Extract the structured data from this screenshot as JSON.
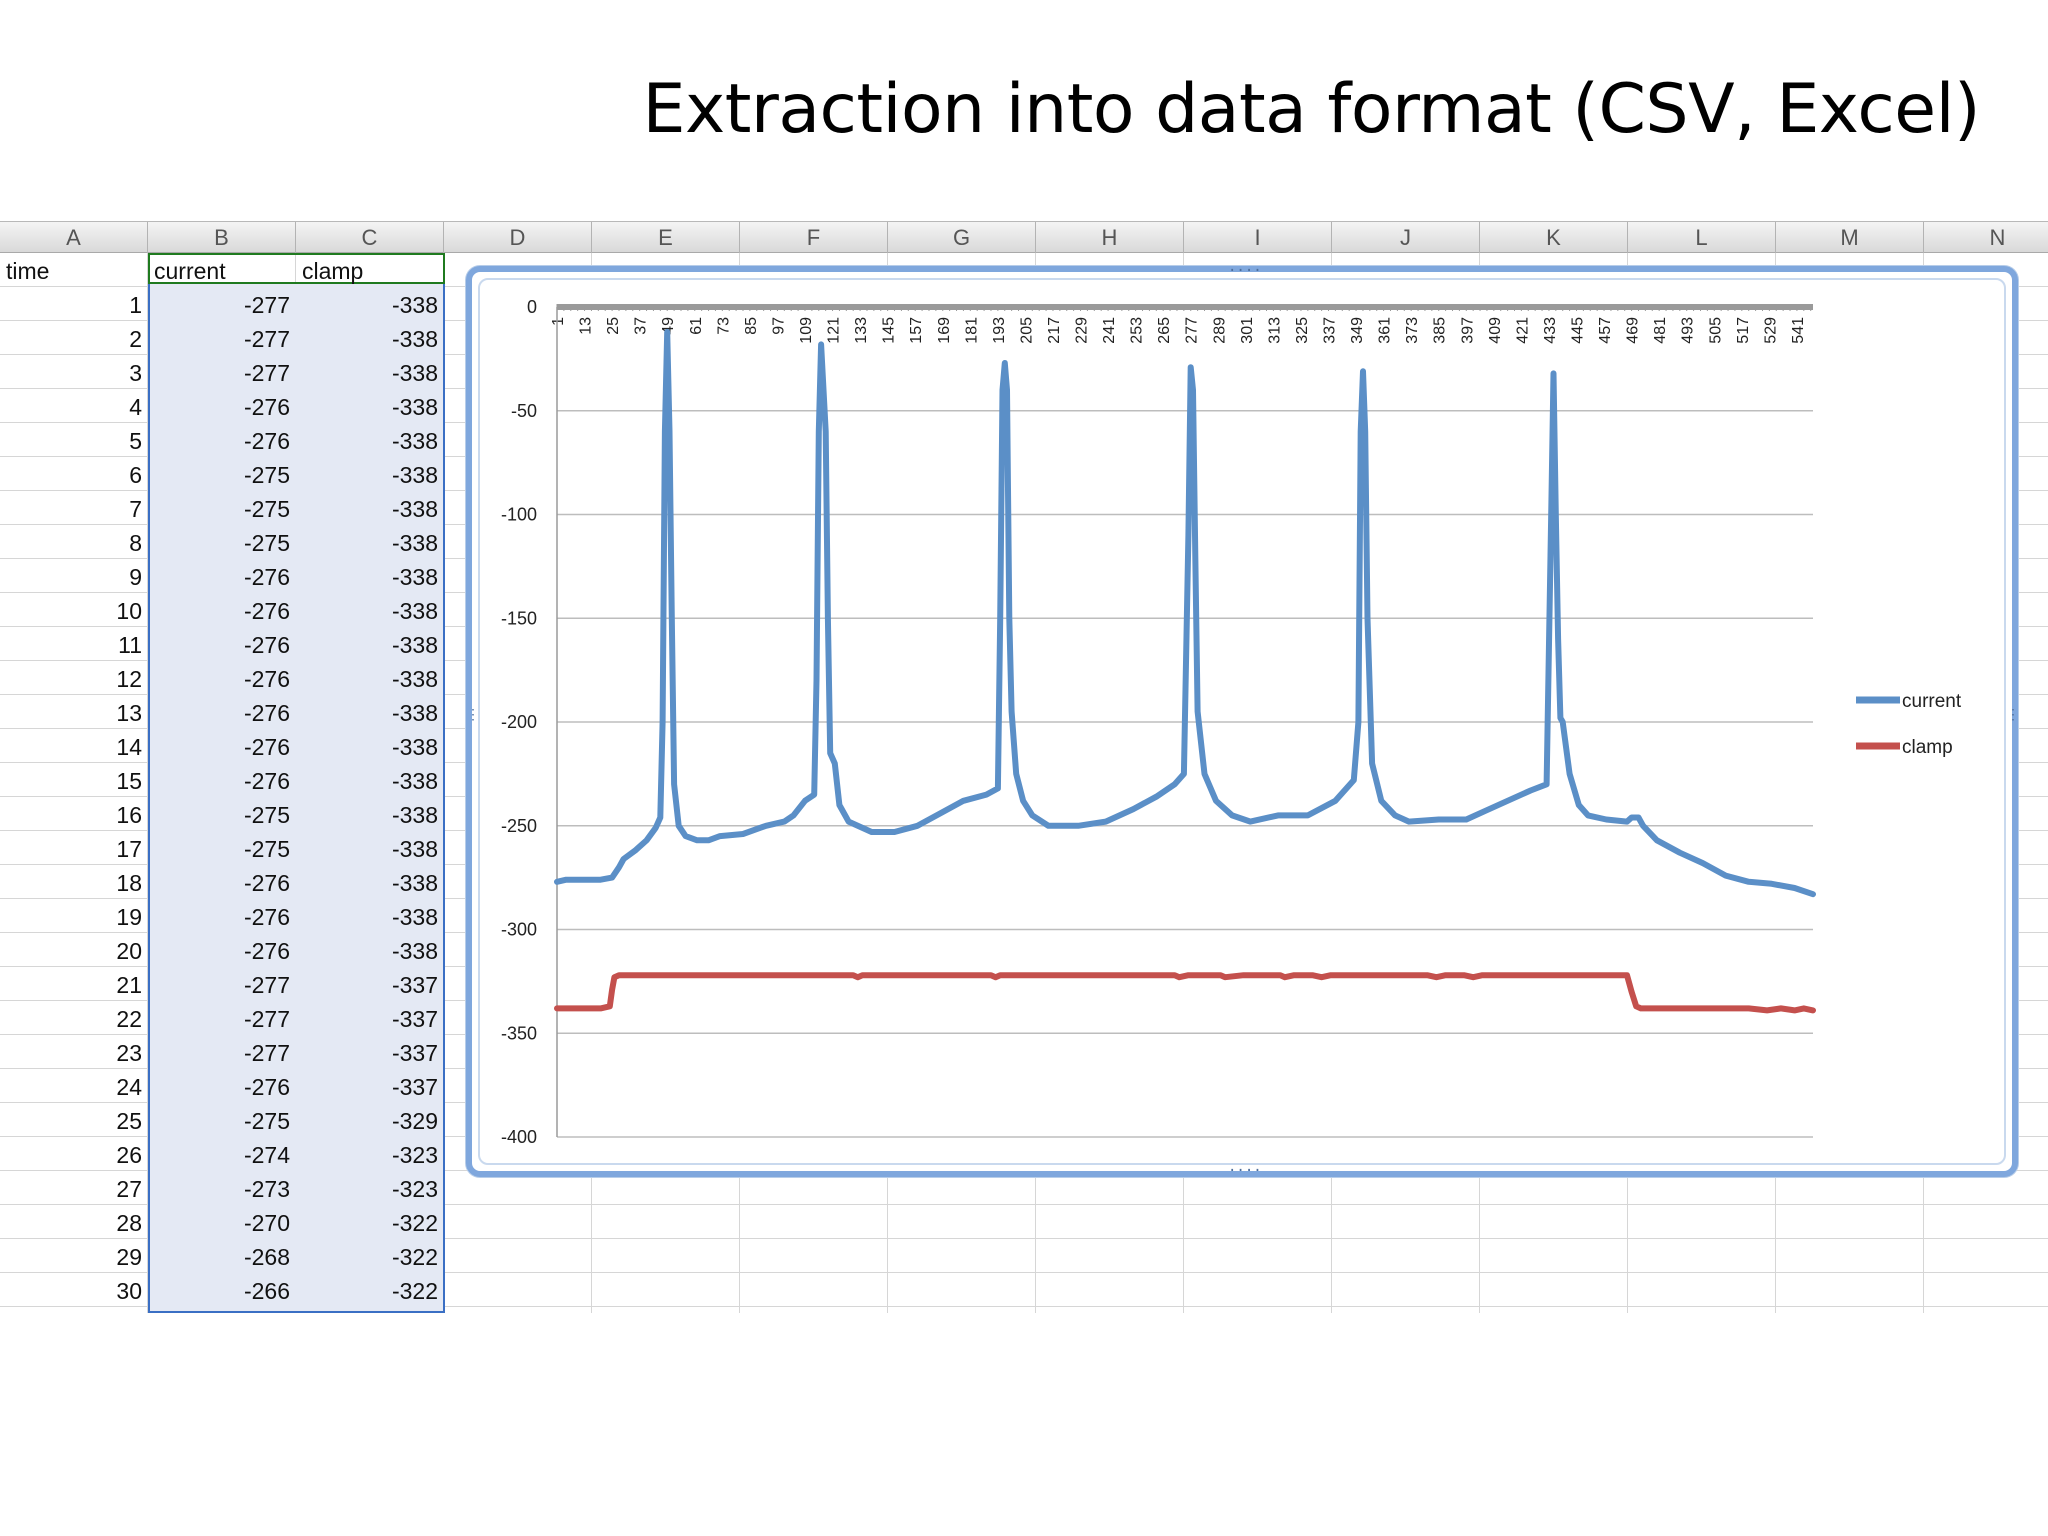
{
  "slide": {
    "title": "Extraction into data format (CSV, Excel)"
  },
  "spreadsheet": {
    "columns": [
      "A",
      "B",
      "C",
      "D",
      "E",
      "F",
      "G",
      "H",
      "I",
      "J",
      "K",
      "L",
      "M",
      "N"
    ],
    "headers": {
      "time": "time",
      "current": "current",
      "clamp": "clamp"
    },
    "rows": [
      {
        "time": "1",
        "current": "-277",
        "clamp": "-338"
      },
      {
        "time": "2",
        "current": "-277",
        "clamp": "-338"
      },
      {
        "time": "3",
        "current": "-277",
        "clamp": "-338"
      },
      {
        "time": "4",
        "current": "-276",
        "clamp": "-338"
      },
      {
        "time": "5",
        "current": "-276",
        "clamp": "-338"
      },
      {
        "time": "6",
        "current": "-275",
        "clamp": "-338"
      },
      {
        "time": "7",
        "current": "-275",
        "clamp": "-338"
      },
      {
        "time": "8",
        "current": "-275",
        "clamp": "-338"
      },
      {
        "time": "9",
        "current": "-276",
        "clamp": "-338"
      },
      {
        "time": "10",
        "current": "-276",
        "clamp": "-338"
      },
      {
        "time": "11",
        "current": "-276",
        "clamp": "-338"
      },
      {
        "time": "12",
        "current": "-276",
        "clamp": "-338"
      },
      {
        "time": "13",
        "current": "-276",
        "clamp": "-338"
      },
      {
        "time": "14",
        "current": "-276",
        "clamp": "-338"
      },
      {
        "time": "15",
        "current": "-276",
        "clamp": "-338"
      },
      {
        "time": "16",
        "current": "-275",
        "clamp": "-338"
      },
      {
        "time": "17",
        "current": "-275",
        "clamp": "-338"
      },
      {
        "time": "18",
        "current": "-276",
        "clamp": "-338"
      },
      {
        "time": "19",
        "current": "-276",
        "clamp": "-338"
      },
      {
        "time": "20",
        "current": "-276",
        "clamp": "-338"
      },
      {
        "time": "21",
        "current": "-277",
        "clamp": "-337"
      },
      {
        "time": "22",
        "current": "-277",
        "clamp": "-337"
      },
      {
        "time": "23",
        "current": "-277",
        "clamp": "-337"
      },
      {
        "time": "24",
        "current": "-276",
        "clamp": "-337"
      },
      {
        "time": "25",
        "current": "-275",
        "clamp": "-329"
      },
      {
        "time": "26",
        "current": "-274",
        "clamp": "-323"
      },
      {
        "time": "27",
        "current": "-273",
        "clamp": "-323"
      },
      {
        "time": "28",
        "current": "-270",
        "clamp": "-322"
      },
      {
        "time": "29",
        "current": "-268",
        "clamp": "-322"
      },
      {
        "time": "30",
        "current": "-266",
        "clamp": "-322"
      }
    ]
  },
  "chart_data": {
    "type": "line",
    "title": "",
    "xlabel": "",
    "ylabel": "",
    "ylim": [
      -400,
      0
    ],
    "yticks": [
      0,
      -50,
      -100,
      -150,
      -200,
      -250,
      -300,
      -350,
      -400
    ],
    "xlim": [
      1,
      548
    ],
    "xtick_labels": [
      "1",
      "13",
      "25",
      "37",
      "49",
      "61",
      "73",
      "85",
      "97",
      "109",
      "121",
      "133",
      "145",
      "157",
      "169",
      "181",
      "193",
      "205",
      "217",
      "229",
      "241",
      "253",
      "265",
      "277",
      "289",
      "301",
      "313",
      "325",
      "337",
      "349",
      "361",
      "373",
      "385",
      "397",
      "409",
      "421",
      "433",
      "445",
      "457",
      "469",
      "481",
      "493",
      "505",
      "517",
      "529",
      "541"
    ],
    "grid": true,
    "legend_position": "right",
    "colors": {
      "current": "#5b8fc7",
      "clamp": "#c4504d"
    },
    "series": [
      {
        "name": "current",
        "points": [
          [
            1,
            -277
          ],
          [
            5,
            -276
          ],
          [
            10,
            -276
          ],
          [
            15,
            -276
          ],
          [
            20,
            -276
          ],
          [
            25,
            -275
          ],
          [
            28,
            -270
          ],
          [
            30,
            -266
          ],
          [
            35,
            -262
          ],
          [
            40,
            -257
          ],
          [
            44,
            -251
          ],
          [
            46,
            -246
          ],
          [
            47,
            -200
          ],
          [
            48,
            -60
          ],
          [
            49,
            -12
          ],
          [
            50,
            -60
          ],
          [
            51,
            -150
          ],
          [
            52,
            -230
          ],
          [
            54,
            -250
          ],
          [
            57,
            -255
          ],
          [
            62,
            -257
          ],
          [
            67,
            -257
          ],
          [
            72,
            -255
          ],
          [
            82,
            -254
          ],
          [
            92,
            -250
          ],
          [
            100,
            -248
          ],
          [
            104,
            -245
          ],
          [
            109,
            -238
          ],
          [
            113,
            -235
          ],
          [
            114,
            -180
          ],
          [
            115,
            -60
          ],
          [
            116,
            -18
          ],
          [
            118,
            -60
          ],
          [
            119,
            -150
          ],
          [
            120,
            -215
          ],
          [
            122,
            -220
          ],
          [
            124,
            -240
          ],
          [
            128,
            -248
          ],
          [
            138,
            -253
          ],
          [
            148,
            -253
          ],
          [
            158,
            -250
          ],
          [
            168,
            -244
          ],
          [
            178,
            -238
          ],
          [
            188,
            -235
          ],
          [
            193,
            -232
          ],
          [
            194,
            -150
          ],
          [
            195,
            -40
          ],
          [
            196,
            -27
          ],
          [
            197,
            -40
          ],
          [
            198,
            -150
          ],
          [
            199,
            -195
          ],
          [
            201,
            -225
          ],
          [
            204,
            -238
          ],
          [
            208,
            -245
          ],
          [
            215,
            -250
          ],
          [
            228,
            -250
          ],
          [
            240,
            -248
          ],
          [
            252,
            -242
          ],
          [
            262,
            -236
          ],
          [
            270,
            -230
          ],
          [
            274,
            -225
          ],
          [
            276,
            -110
          ],
          [
            277,
            -29
          ],
          [
            278,
            -40
          ],
          [
            279,
            -120
          ],
          [
            280,
            -195
          ],
          [
            283,
            -225
          ],
          [
            288,
            -238
          ],
          [
            295,
            -245
          ],
          [
            303,
            -248
          ],
          [
            315,
            -245
          ],
          [
            328,
            -245
          ],
          [
            340,
            -238
          ],
          [
            348,
            -228
          ],
          [
            350,
            -200
          ],
          [
            351,
            -60
          ],
          [
            352,
            -31
          ],
          [
            353,
            -60
          ],
          [
            354,
            -150
          ],
          [
            356,
            -220
          ],
          [
            360,
            -238
          ],
          [
            366,
            -245
          ],
          [
            372,
            -248
          ],
          [
            385,
            -247
          ],
          [
            397,
            -247
          ],
          [
            405,
            -243
          ],
          [
            415,
            -238
          ],
          [
            425,
            -233
          ],
          [
            432,
            -230
          ],
          [
            434,
            -100
          ],
          [
            435,
            -32
          ],
          [
            436,
            -100
          ],
          [
            437,
            -160
          ],
          [
            438,
            -198
          ],
          [
            439,
            -200
          ],
          [
            442,
            -225
          ],
          [
            446,
            -240
          ],
          [
            450,
            -245
          ],
          [
            458,
            -247
          ],
          [
            467,
            -248
          ],
          [
            469,
            -246
          ],
          [
            472,
            -246
          ],
          [
            474,
            -250
          ],
          [
            480,
            -257
          ],
          [
            490,
            -263
          ],
          [
            500,
            -268
          ],
          [
            510,
            -274
          ],
          [
            520,
            -277
          ],
          [
            530,
            -278
          ],
          [
            540,
            -280
          ],
          [
            548,
            -283
          ]
        ]
      },
      {
        "name": "clamp",
        "points": [
          [
            1,
            -338
          ],
          [
            20,
            -338
          ],
          [
            24,
            -337
          ],
          [
            25,
            -329
          ],
          [
            26,
            -323
          ],
          [
            28,
            -322
          ],
          [
            50,
            -322
          ],
          [
            100,
            -322
          ],
          [
            130,
            -322
          ],
          [
            132,
            -323
          ],
          [
            134,
            -322
          ],
          [
            150,
            -322
          ],
          [
            180,
            -322
          ],
          [
            190,
            -322
          ],
          [
            192,
            -323
          ],
          [
            194,
            -322
          ],
          [
            230,
            -322
          ],
          [
            270,
            -322
          ],
          [
            272,
            -323
          ],
          [
            276,
            -322
          ],
          [
            290,
            -322
          ],
          [
            292,
            -323
          ],
          [
            300,
            -322
          ],
          [
            316,
            -322
          ],
          [
            318,
            -323
          ],
          [
            322,
            -322
          ],
          [
            330,
            -322
          ],
          [
            334,
            -323
          ],
          [
            338,
            -322
          ],
          [
            380,
            -322
          ],
          [
            384,
            -323
          ],
          [
            388,
            -322
          ],
          [
            396,
            -322
          ],
          [
            400,
            -323
          ],
          [
            404,
            -322
          ],
          [
            440,
            -322
          ],
          [
            445,
            -322
          ],
          [
            450,
            -322
          ],
          [
            467,
            -322
          ],
          [
            469,
            -330
          ],
          [
            471,
            -337
          ],
          [
            473,
            -338
          ],
          [
            520,
            -338
          ],
          [
            528,
            -339
          ],
          [
            534,
            -338
          ],
          [
            540,
            -339
          ],
          [
            544,
            -338
          ],
          [
            548,
            -339
          ]
        ]
      }
    ]
  }
}
